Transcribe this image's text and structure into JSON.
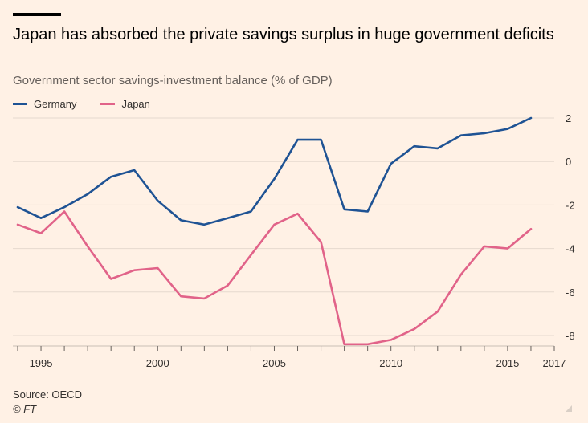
{
  "header": {
    "title": "Japan has absorbed the private savings surplus in huge government deficits",
    "subtitle": "Government sector savings-investment balance (% of GDP)"
  },
  "footer": {
    "source": "Source: OECD",
    "credit": "© FT"
  },
  "chart_data": {
    "type": "line",
    "title": "Japan has absorbed the private savings surplus in huge government deficits",
    "subtitle": "Government sector savings-investment balance (% of GDP)",
    "x": [
      1994,
      1995,
      1996,
      1997,
      1998,
      1999,
      2000,
      2001,
      2002,
      2003,
      2004,
      2005,
      2006,
      2007,
      2008,
      2009,
      2010,
      2011,
      2012,
      2013,
      2014,
      2015,
      2016,
      2017
    ],
    "series": [
      {
        "name": "Germany",
        "color": "#1f5394",
        "values": [
          -2.1,
          -2.6,
          -2.1,
          -1.5,
          -0.7,
          -0.4,
          -1.8,
          -2.7,
          -2.9,
          -2.6,
          -2.3,
          -0.8,
          1.0,
          1.0,
          -2.2,
          -2.3,
          -0.1,
          0.7,
          0.6,
          1.2,
          1.3,
          1.5,
          2.0,
          null
        ]
      },
      {
        "name": "Japan",
        "color": "#e16389",
        "values": [
          -2.9,
          -3.3,
          -2.3,
          -3.9,
          -5.4,
          -5.0,
          -4.9,
          -6.2,
          -6.3,
          -5.7,
          -4.3,
          -2.9,
          -2.4,
          -3.7,
          -8.4,
          -8.4,
          -8.2,
          -7.7,
          -6.9,
          -5.2,
          -3.9,
          -4.0,
          -3.1,
          null
        ]
      }
    ],
    "x_tick_labels": [
      "1995",
      "2000",
      "2005",
      "2010",
      "2015",
      "2017"
    ],
    "x_tick_values": [
      1995,
      2000,
      2005,
      2010,
      2015,
      2017
    ],
    "y_tick_values": [
      2,
      0,
      -2,
      -4,
      -6,
      -8
    ],
    "y_tick_labels": [
      "2",
      "0",
      "-2",
      "-4",
      "-6",
      "-8"
    ],
    "ylim": [
      -8.5,
      2
    ],
    "grid": true,
    "legend": "top-left"
  }
}
